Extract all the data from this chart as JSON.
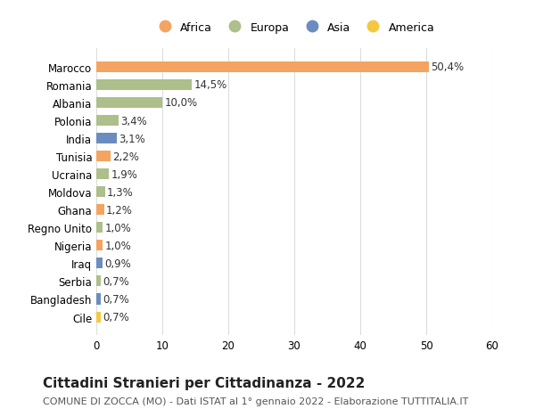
{
  "categories": [
    "Marocco",
    "Romania",
    "Albania",
    "Polonia",
    "India",
    "Tunisia",
    "Ucraina",
    "Moldova",
    "Ghana",
    "Regno Unito",
    "Nigeria",
    "Iraq",
    "Serbia",
    "Bangladesh",
    "Cile"
  ],
  "values": [
    50.4,
    14.5,
    10.0,
    3.4,
    3.1,
    2.2,
    1.9,
    1.3,
    1.2,
    1.0,
    1.0,
    0.9,
    0.7,
    0.7,
    0.7
  ],
  "labels": [
    "50,4%",
    "14,5%",
    "10,0%",
    "3,4%",
    "3,1%",
    "2,2%",
    "1,9%",
    "1,3%",
    "1,2%",
    "1,0%",
    "1,0%",
    "0,9%",
    "0,7%",
    "0,7%",
    "0,7%"
  ],
  "continent": [
    "Africa",
    "Europa",
    "Europa",
    "Europa",
    "Asia",
    "Africa",
    "Europa",
    "Europa",
    "Africa",
    "Europa",
    "Africa",
    "Asia",
    "Europa",
    "Asia",
    "America"
  ],
  "colors": {
    "Africa": "#F4A460",
    "Europa": "#ADBF8A",
    "Asia": "#6B8CBE",
    "America": "#F5C842"
  },
  "legend_order": [
    "Africa",
    "Europa",
    "Asia",
    "America"
  ],
  "xlim": [
    0,
    60
  ],
  "xticks": [
    0,
    10,
    20,
    30,
    40,
    50,
    60
  ],
  "title": "Cittadini Stranieri per Cittadinanza - 2022",
  "subtitle": "COMUNE DI ZOCCA (MO) - Dati ISTAT al 1° gennaio 2022 - Elaborazione TUTTITALIA.IT",
  "title_fontsize": 11,
  "subtitle_fontsize": 8,
  "background_color": "#ffffff",
  "grid_color": "#dddddd",
  "label_fontsize": 8.5,
  "tick_fontsize": 8.5
}
